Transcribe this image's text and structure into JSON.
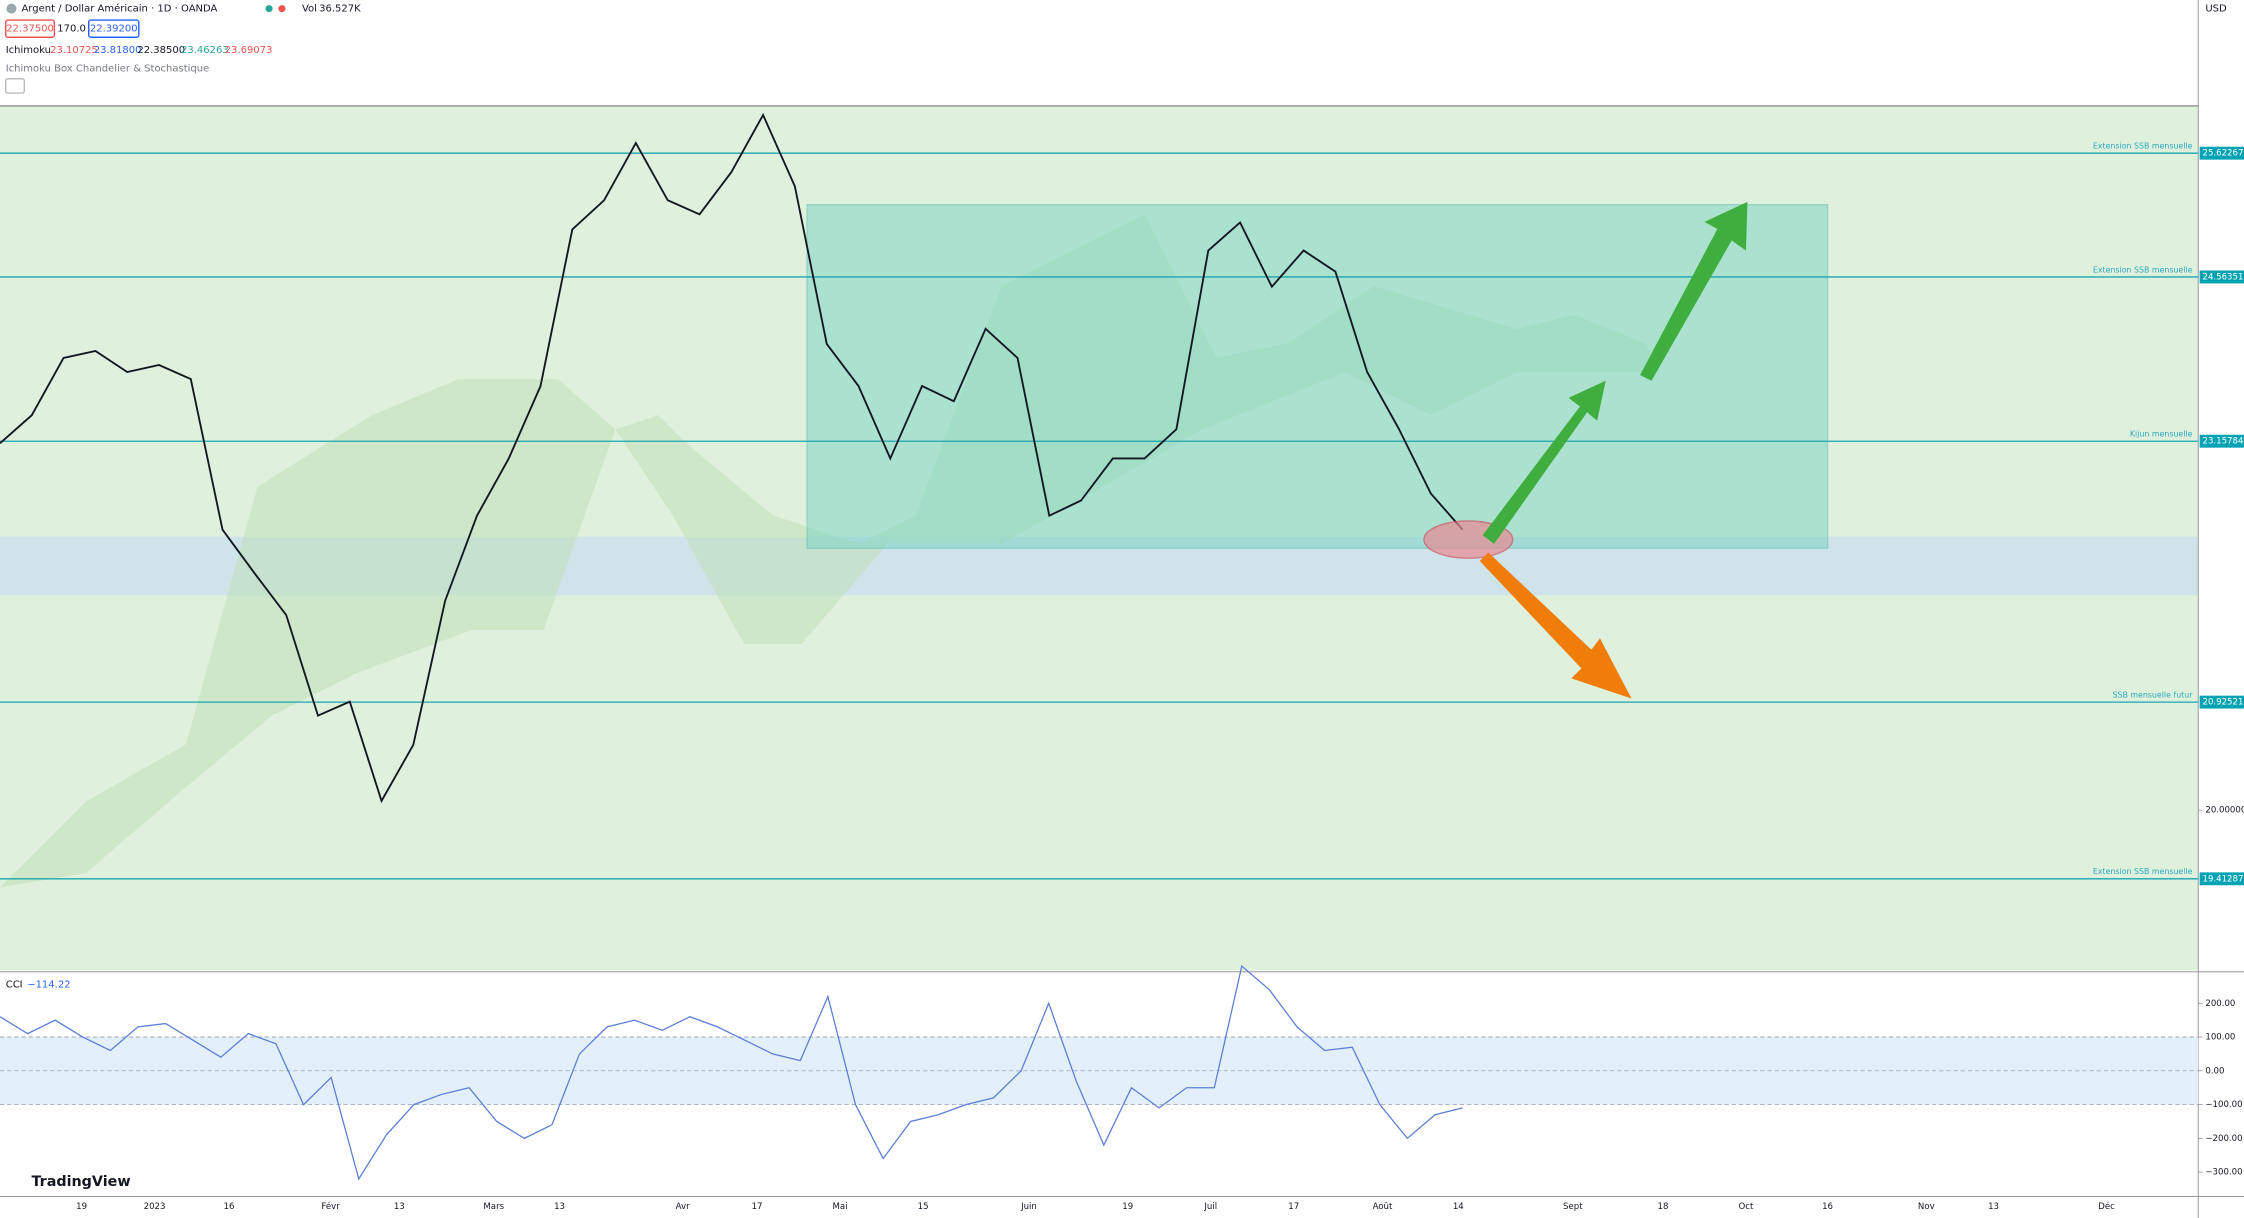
{
  "header": {
    "symbol": "Argent / Dollar Américain · 1D · OANDA",
    "vol_label": "Vol",
    "vol": "36.527K",
    "bid": "22.37500",
    "spread": "170.0",
    "ask": "22.39200",
    "currency": "USD"
  },
  "indicator1": {
    "name": "Ichimoku",
    "values": [
      "23.10725",
      "23.81800",
      "22.38500",
      "23.46263",
      "23.69073"
    ]
  },
  "indicator2": {
    "name": "Ichimoku Box Chandelier & Stochastique"
  },
  "time_axis": [
    "19",
    "2023",
    "16",
    "Févr",
    "13",
    "Mars",
    "13",
    "Avr",
    "17",
    "Mai",
    "15",
    "Juin",
    "19",
    "Juil",
    "17",
    "Août",
    "14",
    "Sept",
    "18",
    "Oct",
    "16",
    "Nov",
    "13",
    "Déc"
  ],
  "brand": "TradingView",
  "chart_data": [
    {
      "type": "line",
      "ylim": [
        18.6295,
        26.0268
      ],
      "yticks": [
        {
          "value": 20,
          "label": "20.00000"
        }
      ],
      "levels": [
        {
          "value": 25.62267,
          "label": "Extension SSB mensuelle"
        },
        {
          "value": 24.56351,
          "label": "Extension SSB mensuelle"
        },
        {
          "value": 23.15784,
          "label": "Kijun mensuelle"
        },
        {
          "value": 20.92521,
          "label": "SSB mensuelle futur"
        },
        {
          "value": 19.41287,
          "label": "Extension SSB mensuelle"
        }
      ],
      "series": [
        {
          "color": "#131722",
          "values": [
            23.14,
            23.38,
            23.87,
            23.93,
            23.75,
            23.81,
            23.69,
            22.4,
            22.03,
            21.67,
            20.81,
            20.93,
            20.08,
            20.56,
            21.79,
            22.52,
            23.01,
            23.63,
            24.97,
            25.22,
            25.71,
            25.22,
            25.1,
            25.46,
            25.95,
            25.34,
            23.99,
            23.63,
            23.01,
            23.63,
            23.5,
            24.12,
            23.87,
            22.52,
            22.65,
            23.01,
            23.01,
            23.26,
            24.79,
            25.03,
            24.48,
            24.79,
            24.61,
            23.75,
            23.26,
            22.71,
            22.4
          ]
        }
      ]
    },
    {
      "type": "line",
      "title": "CCI",
      "last": "−114.22",
      "ylim": [
        -368,
        289
      ],
      "yticks": [
        {
          "value": 200,
          "label": "200.00"
        },
        {
          "value": 100,
          "label": "100.00"
        },
        {
          "value": 0,
          "label": "0.00"
        },
        {
          "value": -100,
          "label": "−100.00"
        },
        {
          "value": -200,
          "label": "−200.00"
        },
        {
          "value": -300,
          "label": "−300.00"
        }
      ],
      "series": [
        {
          "color": "#5b7fd6",
          "values": [
            160,
            110,
            150,
            100,
            60,
            130,
            140,
            90,
            40,
            110,
            80,
            -100,
            -20,
            -320,
            -190,
            -100,
            -70,
            -50,
            -150,
            -200,
            -160,
            50,
            130,
            150,
            120,
            160,
            130,
            90,
            50,
            30,
            220,
            -100,
            -260,
            -150,
            -130,
            -100,
            -80,
            0,
            200,
            -30,
            -220,
            -50,
            -110,
            -50,
            -50,
            310,
            240,
            130,
            60,
            70,
            -100,
            -200,
            -130,
            -110
          ]
        }
      ]
    }
  ]
}
